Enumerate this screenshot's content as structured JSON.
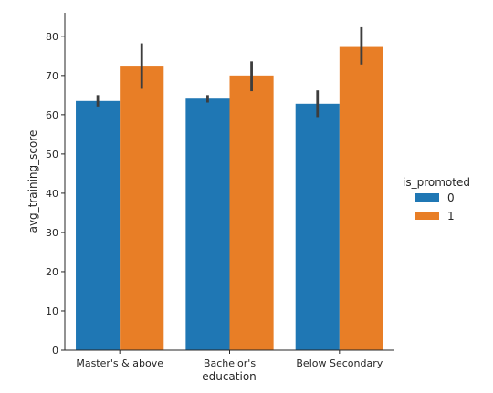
{
  "chart_data": {
    "type": "bar",
    "categories": [
      "Master's & above",
      "Bachelor's",
      "Below Secondary"
    ],
    "series": [
      {
        "name": "0",
        "color": "#1f77b4",
        "values": [
          63.5,
          64.1,
          62.8
        ],
        "ci_low": [
          62.1,
          63.1,
          59.4
        ],
        "ci_high": [
          65.0,
          65.0,
          66.2
        ]
      },
      {
        "name": "1",
        "color": "#e87e26",
        "values": [
          72.5,
          70.0,
          77.5
        ],
        "ci_low": [
          66.6,
          66.0,
          72.8
        ],
        "ci_high": [
          78.2,
          73.6,
          82.3
        ]
      }
    ],
    "xlabel": "education",
    "ylabel": "avg_training_score",
    "ylim": [
      0,
      86
    ],
    "yticks": [
      0,
      10,
      20,
      30,
      40,
      50,
      60,
      70,
      80
    ],
    "legend_title": "is_promoted",
    "legend_position": "right",
    "grid": false
  }
}
